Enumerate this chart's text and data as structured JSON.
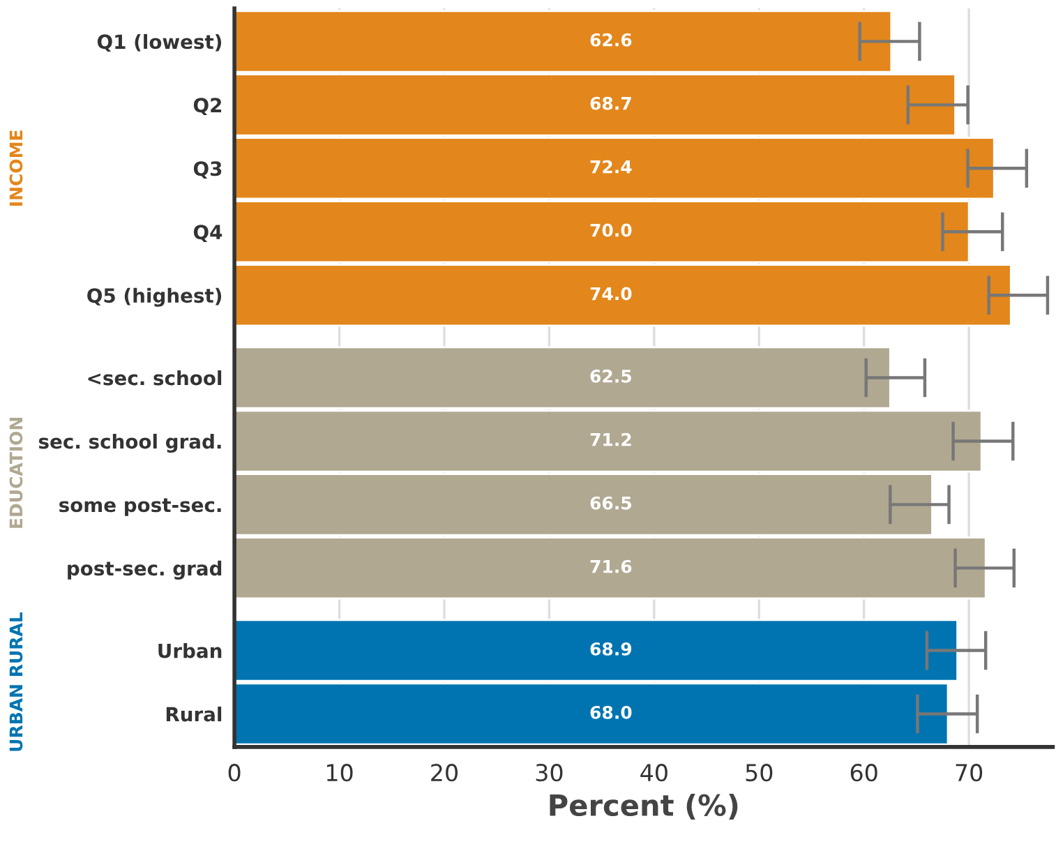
{
  "chart_data": {
    "type": "bar",
    "orientation": "horizontal",
    "xlabel": "Percent (%)",
    "categories": [
      "Q1 (lowest)",
      "Q2",
      "Q3",
      "Q4",
      "Q5 (highest)",
      "<sec. school",
      "sec. school grad.",
      "some post-sec.",
      "post-sec. grad",
      "Urban",
      "Rural"
    ],
    "series": [
      {
        "color": "#e3861b",
        "values": [
          62.6,
          68.7,
          72.4,
          70.0,
          74.0,
          null,
          null,
          null,
          null,
          null,
          null
        ],
        "value_labels": [
          "62.6",
          "68.7",
          "72.4",
          "70.0",
          "74.0",
          null,
          null,
          null,
          null,
          null,
          null
        ],
        "errors": [
          [
            59.6,
            65.3
          ],
          [
            64.2,
            69.9
          ],
          [
            69.9,
            75.5
          ],
          [
            67.5,
            73.2
          ],
          [
            71.9,
            77.5
          ],
          null,
          null,
          null,
          null,
          null,
          null
        ]
      },
      {
        "color": "#b0a891",
        "values": [
          null,
          null,
          null,
          null,
          null,
          62.5,
          71.2,
          66.5,
          71.6,
          null,
          null
        ],
        "value_labels": [
          null,
          null,
          null,
          null,
          null,
          "62.5",
          "71.2",
          "66.5",
          "71.6",
          null,
          null
        ],
        "errors": [
          null,
          null,
          null,
          null,
          null,
          [
            60.2,
            65.8
          ],
          [
            68.5,
            74.2
          ],
          [
            62.5,
            68.1
          ],
          [
            68.7,
            74.3
          ],
          null,
          null
        ]
      },
      {
        "color": "#0074b0",
        "values": [
          null,
          null,
          null,
          null,
          null,
          null,
          null,
          null,
          null,
          68.9,
          68.0
        ],
        "value_labels": [
          null,
          null,
          null,
          null,
          null,
          null,
          null,
          null,
          null,
          "68.9",
          "68.0"
        ],
        "errors": [
          null,
          null,
          null,
          null,
          null,
          null,
          null,
          null,
          null,
          [
            66.0,
            71.6
          ],
          [
            65.1,
            70.8
          ]
        ]
      }
    ],
    "annotations": [
      "INCOME",
      "EDUCATION",
      "URBAN RURAL"
    ],
    "xlim": [
      0,
      78
    ],
    "xticks": [
      0,
      10,
      20,
      30,
      40,
      50,
      60,
      70
    ],
    "grid": "x"
  }
}
